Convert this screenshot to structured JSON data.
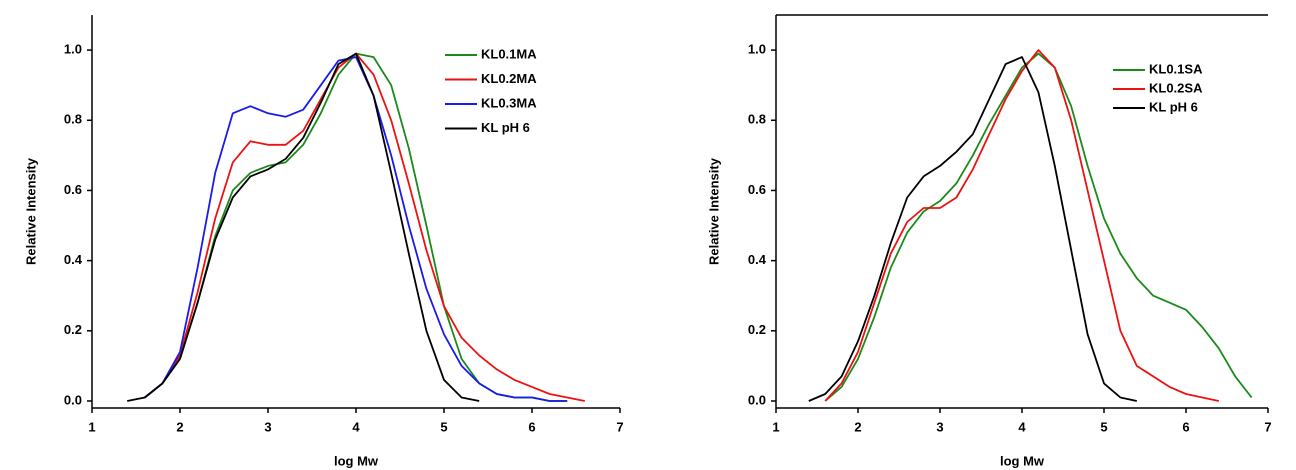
{
  "chart_data": [
    {
      "type": "line",
      "x_label": "log Mw",
      "y_label": "Relative Intensity",
      "legend": "upper right",
      "x": [
        1.4,
        1.6,
        1.8,
        2.0,
        2.2,
        2.4,
        2.6,
        2.8,
        3.0,
        3.2,
        3.4,
        3.6,
        3.8,
        4.0,
        4.2,
        4.4,
        4.6,
        4.8,
        5.0,
        5.2,
        5.4,
        5.6,
        5.8,
        6.0,
        6.2,
        6.4,
        6.6
      ],
      "xlim": [
        1,
        7
      ],
      "xticks": [
        1,
        2,
        3,
        4,
        5,
        6,
        7
      ],
      "ylim": [
        -0.02,
        1.1
      ],
      "yticks": [
        {
          "value": 0,
          "label": "0.0"
        },
        {
          "value": 0.2,
          "label": "0.2"
        },
        {
          "value": 0.4,
          "label": "0.4"
        },
        {
          "value": 0.6,
          "label": "0.6"
        },
        {
          "value": 0.8,
          "label": "0.8"
        },
        {
          "value": 1,
          "label": "1.0"
        }
      ],
      "series": [
        {
          "name": "KL0.1MA",
          "color": "#1a8a1a",
          "values": [
            null,
            0.01,
            0.05,
            0.12,
            0.28,
            0.47,
            0.6,
            0.65,
            0.67,
            0.68,
            0.73,
            0.82,
            0.93,
            0.99,
            0.98,
            0.9,
            0.72,
            0.5,
            0.27,
            0.12,
            0.05,
            0.02,
            0.01,
            0.01,
            0,
            0,
            null
          ]
        },
        {
          "name": "KL0.2MA",
          "color": "#ee1111",
          "values": [
            null,
            0.01,
            0.05,
            0.13,
            0.31,
            0.52,
            0.68,
            0.74,
            0.73,
            0.73,
            0.77,
            0.86,
            0.95,
            0.99,
            0.93,
            0.8,
            0.62,
            0.43,
            0.27,
            0.18,
            0.13,
            0.09,
            0.06,
            0.04,
            0.02,
            0.01,
            0
          ]
        },
        {
          "name": "KL0.3MA",
          "color": "#1a1aee",
          "values": [
            null,
            0.01,
            0.05,
            0.14,
            0.38,
            0.65,
            0.82,
            0.84,
            0.82,
            0.81,
            0.83,
            0.9,
            0.97,
            0.98,
            0.87,
            0.7,
            0.5,
            0.32,
            0.19,
            0.1,
            0.05,
            0.02,
            0.01,
            0.01,
            0,
            0,
            null
          ]
        },
        {
          "name": "KL pH 6",
          "color": "#000000",
          "values": [
            0,
            0.01,
            0.05,
            0.12,
            0.28,
            0.46,
            0.58,
            0.64,
            0.66,
            0.69,
            0.75,
            0.85,
            0.96,
            0.99,
            0.87,
            0.65,
            0.42,
            0.2,
            0.06,
            0.01,
            0,
            null,
            null,
            null,
            null,
            null,
            null
          ]
        }
      ]
    },
    {
      "type": "line",
      "x_label": "log Mw",
      "y_label": "Relative Intensity",
      "legend": "upper right",
      "x": [
        1.4,
        1.6,
        1.8,
        2.0,
        2.2,
        2.4,
        2.6,
        2.8,
        3.0,
        3.2,
        3.4,
        3.6,
        3.8,
        4.0,
        4.2,
        4.4,
        4.6,
        4.8,
        5.0,
        5.2,
        5.4,
        5.6,
        5.8,
        6.0,
        6.2,
        6.4,
        6.6,
        6.8
      ],
      "xlim": [
        1,
        7
      ],
      "xticks": [
        1,
        2,
        3,
        4,
        5,
        6,
        7
      ],
      "ylim": [
        -0.02,
        1.1
      ],
      "yticks": [
        {
          "value": 0,
          "label": "0.0"
        },
        {
          "value": 0.2,
          "label": "0.2"
        },
        {
          "value": 0.4,
          "label": "0.4"
        },
        {
          "value": 0.6,
          "label": "0.6"
        },
        {
          "value": 0.8,
          "label": "0.8"
        },
        {
          "value": 1,
          "label": "1.0"
        }
      ],
      "series": [
        {
          "name": "KL0.1SA",
          "color": "#1a8a1a",
          "values": [
            null,
            0,
            0.04,
            0.12,
            0.24,
            0.38,
            0.48,
            0.54,
            0.57,
            0.62,
            0.7,
            0.79,
            0.87,
            0.95,
            0.99,
            0.95,
            0.84,
            0.67,
            0.52,
            0.42,
            0.35,
            0.3,
            0.28,
            0.26,
            0.21,
            0.15,
            0.07,
            0.01
          ]
        },
        {
          "name": "KL0.2SA",
          "color": "#ee1111",
          "values": [
            null,
            0,
            0.05,
            0.14,
            0.28,
            0.42,
            0.51,
            0.55,
            0.55,
            0.58,
            0.66,
            0.76,
            0.86,
            0.94,
            1.0,
            0.95,
            0.8,
            0.6,
            0.4,
            0.2,
            0.1,
            0.07,
            0.04,
            0.02,
            0.01,
            0,
            null,
            null
          ]
        },
        {
          "name": "KL pH 6",
          "color": "#000000",
          "values": [
            0,
            0.02,
            0.07,
            0.17,
            0.3,
            0.45,
            0.58,
            0.64,
            0.67,
            0.71,
            0.76,
            0.86,
            0.96,
            0.98,
            0.88,
            0.67,
            0.43,
            0.19,
            0.05,
            0.01,
            0,
            null,
            null,
            null,
            null,
            null,
            null,
            null
          ]
        }
      ]
    }
  ]
}
